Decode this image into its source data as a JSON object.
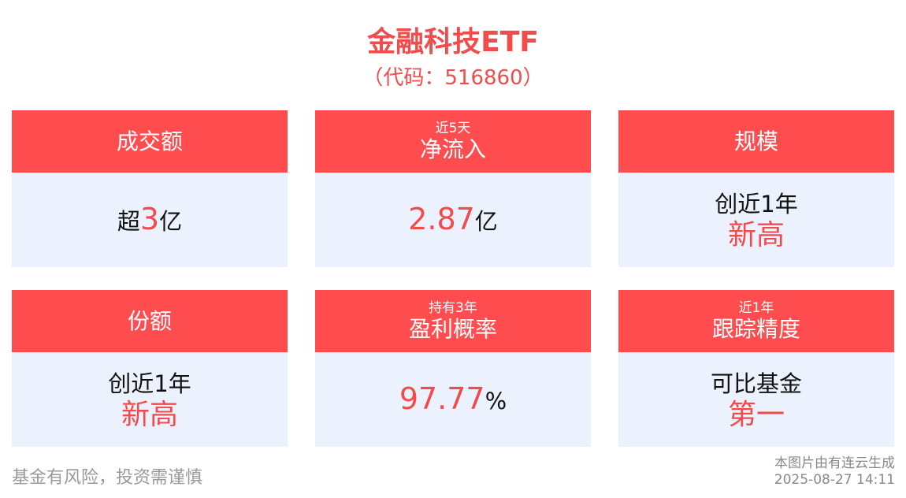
{
  "header": {
    "title": "金融科技ETF",
    "code": "（代码：516860）"
  },
  "colors": {
    "accent": "#ff4d4f",
    "body_bg": "#ecf2fd",
    "highlight": "#f24b4b"
  },
  "cards": [
    {
      "sub": "",
      "title": "成交额",
      "line1": {
        "pre": "超",
        "num": "3",
        "post": "亿"
      },
      "line2": ""
    },
    {
      "sub": "近5天",
      "title": "净流入",
      "line1": {
        "pre": "",
        "num": "2.87",
        "post": "亿"
      },
      "line2": ""
    },
    {
      "sub": "",
      "title": "规模",
      "line1": {
        "pre": "创近1年",
        "num": "",
        "post": ""
      },
      "line2": "新高"
    },
    {
      "sub": "",
      "title": "份额",
      "line1": {
        "pre": "创近1年",
        "num": "",
        "post": ""
      },
      "line2": "新高"
    },
    {
      "sub": "持有3年",
      "title": "盈利概率",
      "line1": {
        "pre": "",
        "num": "97.77",
        "post": "%"
      },
      "line2": ""
    },
    {
      "sub": "近1年",
      "title": "跟踪精度",
      "line1": {
        "pre": "可比基金",
        "num": "",
        "post": ""
      },
      "line2": "第一"
    }
  ],
  "footer": {
    "disclaimer": "基金有风险，投资需谨慎",
    "source": "本图片由有连云生成",
    "timestamp": "2025-08-27 14:11"
  }
}
